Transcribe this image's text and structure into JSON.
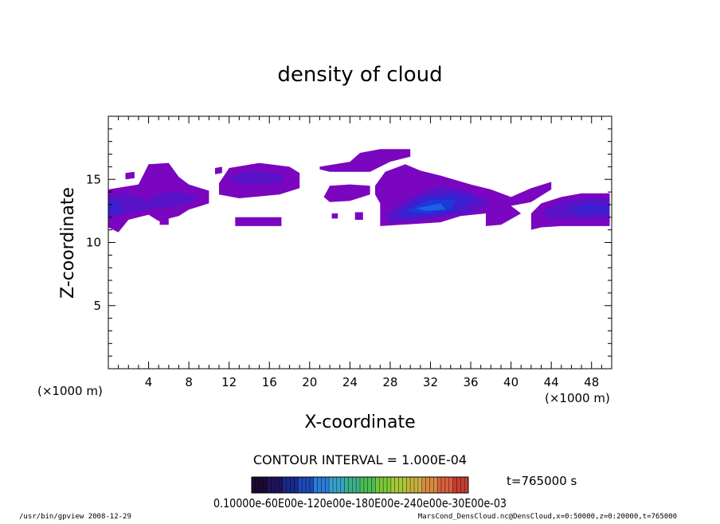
{
  "chart_data": {
    "type": "heatmap",
    "title": "density of cloud",
    "xlabel": "X-coordinate",
    "ylabel": "Z-coordinate",
    "x_unit_left": "(×1000 m)",
    "x_unit_right": "(×1000 m)",
    "xlim": [
      0,
      50
    ],
    "ylim": [
      0,
      20
    ],
    "x_ticks": [
      4,
      8,
      12,
      16,
      20,
      24,
      28,
      32,
      36,
      40,
      44,
      48
    ],
    "y_ticks": [
      5,
      10,
      15
    ],
    "contour_interval_label": "CONTOUR INTERVAL = 1.000E-04",
    "time_label": "t=765000 s",
    "colorbar_labels_text": "0.10000e-60E00e-120e00e-180E00e-240e00e-30E00e-03",
    "colors": {
      "levels": [
        "#7a06c0",
        "#5a12c8",
        "#3b1fd0",
        "#1a3ad8",
        "#1f5fe6",
        "#3a86f0"
      ],
      "colorbar": [
        "#1a0a33",
        "#20125c",
        "#1a2a8a",
        "#1c4ab8",
        "#2a7ad8",
        "#39a0c8",
        "#3ab08a",
        "#4cbc52",
        "#7cc63a",
        "#a8c838",
        "#c8b040",
        "#d88a40",
        "#d8603c",
        "#c83c32"
      ]
    },
    "cloud_regions": [
      {
        "level": 0,
        "polygon": [
          [
            0,
            14.2
          ],
          [
            3,
            14.6
          ],
          [
            4,
            16.2
          ],
          [
            6,
            16.3
          ],
          [
            7,
            15.2
          ],
          [
            8,
            14.6
          ],
          [
            10,
            14.1
          ],
          [
            10,
            13.1
          ],
          [
            8,
            12.6
          ],
          [
            7,
            12.1
          ],
          [
            5,
            11.7
          ],
          [
            4,
            12.2
          ],
          [
            2,
            11.8
          ],
          [
            1,
            10.8
          ],
          [
            0,
            11.2
          ]
        ]
      },
      {
        "level": 0,
        "polygon": [
          [
            1.7,
            15.5
          ],
          [
            2.6,
            15.6
          ],
          [
            2.6,
            15.1
          ],
          [
            1.7,
            15.0
          ]
        ]
      },
      {
        "level": 0,
        "polygon": [
          [
            5.1,
            11.9
          ],
          [
            6,
            11.9
          ],
          [
            6,
            11.4
          ],
          [
            5.1,
            11.4
          ]
        ]
      },
      {
        "level": 0,
        "polygon": [
          [
            11,
            14.7
          ],
          [
            12,
            15.9
          ],
          [
            15,
            16.3
          ],
          [
            18,
            16.0
          ],
          [
            19,
            15.5
          ],
          [
            19,
            14.3
          ],
          [
            17,
            13.8
          ],
          [
            13,
            13.5
          ],
          [
            11,
            13.8
          ]
        ]
      },
      {
        "level": 0,
        "polygon": [
          [
            10.6,
            15.9
          ],
          [
            11.3,
            16.0
          ],
          [
            11.3,
            15.5
          ],
          [
            10.6,
            15.4
          ]
        ]
      },
      {
        "level": 0,
        "polygon": [
          [
            12.6,
            12.0
          ],
          [
            17.2,
            12.0
          ],
          [
            17.2,
            11.3
          ],
          [
            12.6,
            11.3
          ]
        ]
      },
      {
        "level": 0,
        "polygon": [
          [
            21,
            16.0
          ],
          [
            24,
            16.4
          ],
          [
            25,
            17.1
          ],
          [
            27,
            17.4
          ],
          [
            30,
            17.4
          ],
          [
            30,
            16.8
          ],
          [
            28,
            16.4
          ],
          [
            26,
            15.6
          ],
          [
            22,
            15.6
          ],
          [
            21,
            15.8
          ]
        ]
      },
      {
        "level": 0,
        "polygon": [
          [
            21.4,
            13.6
          ],
          [
            22,
            14.5
          ],
          [
            24,
            14.6
          ],
          [
            26,
            14.5
          ],
          [
            26,
            13.8
          ],
          [
            24,
            13.3
          ],
          [
            22,
            13.2
          ]
        ]
      },
      {
        "level": 0,
        "polygon": [
          [
            22.2,
            12.3
          ],
          [
            22.8,
            12.3
          ],
          [
            22.8,
            11.9
          ],
          [
            22.2,
            11.9
          ]
        ]
      },
      {
        "level": 0,
        "polygon": [
          [
            24.5,
            12.4
          ],
          [
            25.3,
            12.4
          ],
          [
            25.3,
            11.8
          ],
          [
            24.5,
            11.8
          ]
        ]
      },
      {
        "level": 0,
        "polygon": [
          [
            26.5,
            14.5
          ],
          [
            27.5,
            15.6
          ],
          [
            29.5,
            16.2
          ],
          [
            31,
            15.7
          ],
          [
            33,
            15.3
          ],
          [
            36,
            14.6
          ],
          [
            38,
            14.2
          ],
          [
            40,
            13.6
          ],
          [
            42,
            14.3
          ],
          [
            44,
            14.8
          ],
          [
            44,
            14.2
          ],
          [
            42,
            13.2
          ],
          [
            40,
            12.9
          ],
          [
            41,
            12.3
          ],
          [
            39,
            11.4
          ],
          [
            37.5,
            11.3
          ],
          [
            37.5,
            12.3
          ],
          [
            35,
            12.1
          ],
          [
            33,
            11.6
          ],
          [
            27,
            11.3
          ],
          [
            27,
            13.1
          ],
          [
            26.5,
            13.8
          ]
        ]
      },
      {
        "level": 0,
        "polygon": [
          [
            42,
            12.3
          ],
          [
            43,
            13.1
          ],
          [
            45,
            13.6
          ],
          [
            47,
            13.9
          ],
          [
            49.8,
            13.9
          ],
          [
            49.8,
            11.3
          ],
          [
            45,
            11.3
          ],
          [
            43,
            11.2
          ],
          [
            42,
            11.0
          ]
        ]
      }
    ],
    "cloud_cores": [
      {
        "level": 1,
        "polygon": [
          [
            0,
            13.7
          ],
          [
            2,
            13.9
          ],
          [
            4,
            13.3
          ],
          [
            5,
            13.9
          ],
          [
            7,
            14.0
          ],
          [
            9,
            13.6
          ],
          [
            8,
            13.1
          ],
          [
            6,
            12.8
          ],
          [
            4,
            12.6
          ],
          [
            2,
            12.3
          ],
          [
            0,
            12.0
          ]
        ]
      },
      {
        "level": 2,
        "polygon": [
          [
            0,
            13.3
          ],
          [
            1.3,
            13.2
          ],
          [
            1.4,
            12.4
          ],
          [
            0,
            12.2
          ]
        ]
      },
      {
        "level": 1,
        "polygon": [
          [
            12,
            15.2
          ],
          [
            14,
            15.7
          ],
          [
            17,
            15.4
          ],
          [
            17.5,
            14.8
          ],
          [
            15,
            14.6
          ],
          [
            13,
            14.6
          ]
        ]
      },
      {
        "level": 1,
        "polygon": [
          [
            27.5,
            12.2
          ],
          [
            30,
            13.6
          ],
          [
            33,
            14.5
          ],
          [
            36,
            14.0
          ],
          [
            38,
            13.2
          ],
          [
            36,
            12.3
          ],
          [
            33,
            12.0
          ],
          [
            30,
            11.7
          ],
          [
            28,
            11.6
          ]
        ]
      },
      {
        "level": 2,
        "polygon": [
          [
            28.5,
            12.3
          ],
          [
            31,
            13.6
          ],
          [
            34,
            14.0
          ],
          [
            36.5,
            13.5
          ],
          [
            35,
            12.5
          ],
          [
            32,
            12.1
          ],
          [
            29.5,
            11.9
          ]
        ]
      },
      {
        "level": 3,
        "polygon": [
          [
            29.5,
            12.5
          ],
          [
            32,
            13.4
          ],
          [
            34.5,
            13.4
          ],
          [
            34,
            12.6
          ],
          [
            31.5,
            12.3
          ]
        ]
      },
      {
        "level": 4,
        "polygon": [
          [
            30.5,
            12.7
          ],
          [
            33,
            13.1
          ],
          [
            33.5,
            12.6
          ],
          [
            31.5,
            12.5
          ]
        ]
      },
      {
        "level": 1,
        "polygon": [
          [
            43,
            12.4
          ],
          [
            45,
            13.2
          ],
          [
            48,
            13.6
          ],
          [
            49.8,
            13.4
          ],
          [
            49.8,
            12.0
          ],
          [
            47,
            11.8
          ],
          [
            44,
            11.9
          ]
        ]
      },
      {
        "level": 2,
        "polygon": [
          [
            45.5,
            12.7
          ],
          [
            48,
            13.1
          ],
          [
            49.8,
            12.9
          ],
          [
            49.8,
            12.3
          ],
          [
            47,
            12.2
          ]
        ]
      }
    ]
  },
  "footer": {
    "left_text": "/usr/bin/gpview  2008-12-29",
    "right_text": "MarsCond_DensCloud.nc@DensCloud,x=0:50000,z=0:20000,t=765000"
  }
}
